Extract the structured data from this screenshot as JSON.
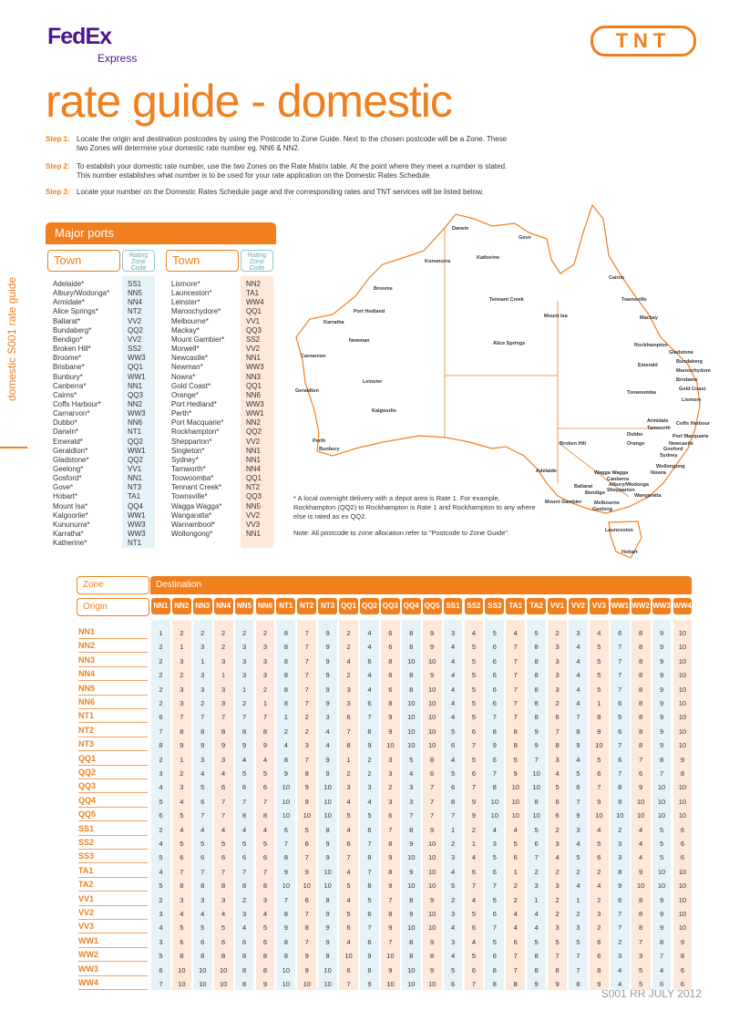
{
  "header": {
    "brand": "FedEx",
    "brand_sub": "Express",
    "right_logo": "TNT",
    "title": "rate guide - domestic",
    "side_label": "domestic S001 rate guide"
  },
  "steps": [
    {
      "label": "Step 1:",
      "text": "Locate the origin and destination postcodes by using the Postcode to Zone Guide. Next to the chosen postcode will be a Zone. These two Zones will determine your domestic rate number eg. NN6 & NN2."
    },
    {
      "label": "Step 2:",
      "text": "To establish your domestic rate number, use the two Zones on the Rate Matrix table. At the point where they meet a number is stated. This number establishes what number is to be used for your rate application on the Domestic Rates Schedule"
    },
    {
      "label": "Step 3:",
      "text": "Locate your number on the Domestic Rates Schedule page and the corresponding rates and TNT services will be listed below."
    }
  ],
  "ports": {
    "title": "Major ports",
    "col_town": "Town",
    "col_zone": "Rating Zone Code",
    "left": [
      [
        "Adelaide*",
        "SS1"
      ],
      [
        "Albury/Wodonga*",
        "NN5"
      ],
      [
        "Armidale*",
        "NN4"
      ],
      [
        "Alice Springs*",
        "NT2"
      ],
      [
        "Ballarat*",
        "VV2"
      ],
      [
        "Bundaberg*",
        "QQ2"
      ],
      [
        "Bendigo*",
        "VV2"
      ],
      [
        "Broken Hill*",
        "SS2"
      ],
      [
        "Broome*",
        "WW3"
      ],
      [
        "Brisbane*",
        "QQ1"
      ],
      [
        "Bunbury*",
        "WW1"
      ],
      [
        "Canberra*",
        "NN1"
      ],
      [
        "Cairns*",
        "QQ3"
      ],
      [
        "Coffs Harbour*",
        "NN2"
      ],
      [
        "Carnarvon*",
        "WW3"
      ],
      [
        "Dubbo*",
        "NN6"
      ],
      [
        "Darwin*",
        "NT1"
      ],
      [
        "Emerald*",
        "QQ2"
      ],
      [
        "Geraldton*",
        "WW1"
      ],
      [
        "Gladstone*",
        "QQ2"
      ],
      [
        "Geelong*",
        "VV1"
      ],
      [
        "Gosford*",
        "NN1"
      ],
      [
        "Gove*",
        "NT3"
      ],
      [
        "Hobart*",
        "TA1"
      ],
      [
        "Mount Isa*",
        "QQ4"
      ],
      [
        "Kalgoorlie*",
        "WW1"
      ],
      [
        "Kununurra*",
        "WW3"
      ],
      [
        "Karratha*",
        "WW3"
      ],
      [
        "Katherine*",
        "NT1"
      ]
    ],
    "right": [
      [
        "Lismore*",
        "NN2"
      ],
      [
        "Launceston*",
        "TA1"
      ],
      [
        "Leinster*",
        "WW4"
      ],
      [
        "Maroochydore*",
        "QQ1"
      ],
      [
        "Melbourne*",
        "VV1"
      ],
      [
        "Mackay*",
        "QQ3"
      ],
      [
        "Mount Gambier*",
        "SS2"
      ],
      [
        "Morwell*",
        "VV2"
      ],
      [
        "Newcastle*",
        "NN1"
      ],
      [
        "Newman*",
        "WW3"
      ],
      [
        "Nowra*",
        "NN3"
      ],
      [
        "Gold Coast*",
        "QQ1"
      ],
      [
        "Orange*",
        "NN6"
      ],
      [
        "Port Hedland*",
        "WW3"
      ],
      [
        "Perth*",
        "WW1"
      ],
      [
        "Port Macquarie*",
        "NN2"
      ],
      [
        "Rockhampton*",
        "QQ2"
      ],
      [
        "Shepparton*",
        "VV2"
      ],
      [
        "Singleton*",
        "NN1"
      ],
      [
        "Sydney*",
        "NN1"
      ],
      [
        "Tamworth*",
        "NN4"
      ],
      [
        "Toowoomba*",
        "QQ1"
      ],
      [
        "Tennant Creek*",
        "NT2"
      ],
      [
        "Townsville*",
        "QQ3"
      ],
      [
        "Wagga Wagga*",
        "NN5"
      ],
      [
        "Wangaratta*",
        "VV2"
      ],
      [
        "Warnambool*",
        "VV3"
      ],
      [
        "Wollongong*",
        "NN1"
      ]
    ]
  },
  "map": {
    "labels": [
      "Darwin",
      "Gove",
      "Katherine",
      "Kununurra",
      "Broome",
      "Port Hedland",
      "Karratha",
      "Newman",
      "Carnarvon",
      "Tennant Creek",
      "Mount Isa",
      "Alice Springs",
      "Cairns",
      "Townsville",
      "Mackay",
      "Rockhampton",
      "Emerald",
      "Gladstone",
      "Bundaberg",
      "Maroochydore",
      "Brisbane",
      "Gold Coast",
      "Toowoomba",
      "Lismore",
      "Geraldton",
      "Leinster",
      "Kalgoorlie",
      "Perth",
      "Bunbury",
      "Broken Hill",
      "Armidale",
      "Tamworth",
      "Coffs Harbour",
      "Dubbo",
      "Port Macquarie",
      "Orange",
      "Newcastle",
      "Gosford",
      "Sydney",
      "Wollongong",
      "Nowra",
      "Adelaide",
      "Wagga Wagga",
      "Canberra",
      "Albury/Wodonga",
      "Shepparton",
      "Wangaratta",
      "Ballarat",
      "Bendigo",
      "Mount Gambier",
      "Melbourne",
      "Geelong",
      "Launceston",
      "Hobart"
    ]
  },
  "notes": [
    "* A local overnight delivery with a depot area is Rate 1. For example, Rockhampton (QQ2) to Rockhampton is Rate 1 and Rockhampton to any where else is rated as ex QQ2.",
    "Note: All postcode to zone allocation refer to \"Postcode to Zone Guide\"."
  ],
  "matrix": {
    "zone_label": "Zone",
    "destination_label": "Destination",
    "origin_label": "Origin",
    "columns": [
      "NN1",
      "NN2",
      "NN3",
      "NN4",
      "NN5",
      "NN6",
      "NT1",
      "NT2",
      "NT3",
      "QQ1",
      "QQ2",
      "QQ3",
      "QQ4",
      "QQ5",
      "SS1",
      "SS2",
      "SS3",
      "TA1",
      "TA2",
      "VV1",
      "VV2",
      "VV3",
      "WW1",
      "WW2",
      "WW3",
      "WW4"
    ],
    "rows": [
      {
        "zone": "NN1",
        "values": [
          1,
          2,
          2,
          2,
          2,
          2,
          8,
          7,
          9,
          2,
          4,
          6,
          8,
          9,
          3,
          4,
          5,
          4,
          5,
          2,
          3,
          4,
          6,
          8,
          9,
          10
        ]
      },
      {
        "zone": "NN2",
        "values": [
          2,
          1,
          3,
          2,
          3,
          3,
          8,
          7,
          9,
          2,
          4,
          6,
          8,
          9,
          4,
          5,
          6,
          7,
          8,
          3,
          4,
          5,
          7,
          8,
          9,
          10
        ]
      },
      {
        "zone": "NN3",
        "values": [
          2,
          3,
          1,
          3,
          3,
          3,
          8,
          7,
          9,
          4,
          6,
          8,
          10,
          10,
          4,
          5,
          6,
          7,
          8,
          3,
          4,
          5,
          7,
          8,
          9,
          10
        ]
      },
      {
        "zone": "NN4",
        "values": [
          2,
          2,
          3,
          1,
          3,
          3,
          8,
          7,
          9,
          2,
          4,
          6,
          8,
          9,
          4,
          5,
          6,
          7,
          8,
          3,
          4,
          5,
          7,
          8,
          9,
          10
        ]
      },
      {
        "zone": "NN5",
        "values": [
          2,
          3,
          3,
          3,
          1,
          2,
          8,
          7,
          9,
          3,
          4,
          6,
          8,
          10,
          4,
          5,
          6,
          7,
          8,
          3,
          4,
          5,
          7,
          8,
          9,
          10
        ]
      },
      {
        "zone": "NN6",
        "values": [
          2,
          3,
          2,
          3,
          2,
          1,
          8,
          7,
          9,
          3,
          6,
          8,
          10,
          10,
          4,
          5,
          6,
          7,
          8,
          2,
          4,
          1,
          6,
          8,
          9,
          10
        ]
      },
      {
        "zone": "NT1",
        "values": [
          6,
          7,
          7,
          7,
          7,
          7,
          1,
          2,
          3,
          6,
          7,
          9,
          10,
          10,
          4,
          5,
          7,
          7,
          8,
          6,
          7,
          8,
          5,
          8,
          9,
          10
        ]
      },
      {
        "zone": "NT2",
        "values": [
          7,
          8,
          8,
          8,
          8,
          8,
          2,
          2,
          4,
          7,
          8,
          9,
          10,
          10,
          5,
          6,
          8,
          8,
          9,
          7,
          8,
          9,
          6,
          8,
          9,
          10
        ]
      },
      {
        "zone": "NT3",
        "values": [
          8,
          9,
          9,
          9,
          9,
          9,
          4,
          3,
          4,
          8,
          9,
          10,
          10,
          10,
          6,
          7,
          9,
          8,
          9,
          8,
          9,
          10,
          7,
          8,
          9,
          10
        ]
      },
      {
        "zone": "QQ1",
        "values": [
          2,
          1,
          3,
          3,
          4,
          4,
          8,
          7,
          9,
          1,
          2,
          3,
          5,
          8,
          4,
          5,
          6,
          5,
          7,
          3,
          4,
          5,
          6,
          7,
          8,
          9
        ]
      },
      {
        "zone": "QQ2",
        "values": [
          3,
          2,
          4,
          4,
          5,
          5,
          9,
          8,
          9,
          2,
          2,
          3,
          4,
          6,
          5,
          6,
          7,
          9,
          10,
          4,
          5,
          6,
          7,
          6,
          7,
          8
        ]
      },
      {
        "zone": "QQ3",
        "values": [
          4,
          3,
          5,
          6,
          6,
          6,
          10,
          9,
          10,
          3,
          3,
          2,
          3,
          7,
          6,
          7,
          8,
          10,
          10,
          5,
          6,
          7,
          8,
          9,
          10,
          10
        ]
      },
      {
        "zone": "QQ4",
        "values": [
          5,
          4,
          6,
          7,
          7,
          7,
          10,
          9,
          10,
          4,
          4,
          3,
          3,
          7,
          8,
          9,
          10,
          10,
          8,
          6,
          7,
          9,
          9,
          10,
          10,
          10
        ]
      },
      {
        "zone": "QQ5",
        "values": [
          6,
          5,
          7,
          7,
          8,
          8,
          10,
          10,
          10,
          5,
          5,
          6,
          7,
          7,
          7,
          9,
          10,
          10,
          10,
          6,
          9,
          10,
          10,
          10,
          10,
          10
        ]
      },
      {
        "zone": "SS1",
        "values": [
          2,
          4,
          4,
          4,
          4,
          4,
          6,
          5,
          8,
          4,
          6,
          7,
          8,
          9,
          1,
          2,
          4,
          4,
          5,
          2,
          3,
          4,
          2,
          4,
          5,
          6
        ]
      },
      {
        "zone": "SS2",
        "values": [
          4,
          5,
          5,
          5,
          5,
          5,
          7,
          6,
          9,
          6,
          7,
          8,
          9,
          10,
          2,
          1,
          3,
          5,
          6,
          3,
          4,
          5,
          3,
          4,
          5,
          6
        ]
      },
      {
        "zone": "SS3",
        "values": [
          5,
          6,
          6,
          6,
          6,
          6,
          8,
          7,
          9,
          7,
          8,
          9,
          10,
          10,
          3,
          4,
          5,
          6,
          7,
          4,
          5,
          6,
          3,
          4,
          5,
          6
        ]
      },
      {
        "zone": "TA1",
        "values": [
          4,
          7,
          7,
          7,
          7,
          7,
          9,
          9,
          10,
          4,
          7,
          8,
          9,
          10,
          4,
          6,
          6,
          1,
          2,
          2,
          2,
          2,
          8,
          9,
          10,
          10
        ]
      },
      {
        "zone": "TA2",
        "values": [
          5,
          8,
          8,
          8,
          8,
          8,
          10,
          10,
          10,
          5,
          8,
          9,
          10,
          10,
          5,
          7,
          7,
          2,
          3,
          3,
          4,
          4,
          9,
          10,
          10,
          10
        ]
      },
      {
        "zone": "VV1",
        "values": [
          2,
          3,
          3,
          3,
          2,
          3,
          7,
          6,
          8,
          4,
          5,
          7,
          8,
          9,
          2,
          4,
          5,
          2,
          1,
          2,
          1,
          2,
          6,
          8,
          9,
          10
        ]
      },
      {
        "zone": "VV2",
        "values": [
          3,
          4,
          4,
          4,
          3,
          4,
          8,
          7,
          9,
          5,
          6,
          8,
          9,
          10,
          3,
          5,
          6,
          4,
          4,
          2,
          2,
          3,
          7,
          8,
          9,
          10
        ]
      },
      {
        "zone": "VV3",
        "values": [
          4,
          5,
          5,
          5,
          4,
          5,
          9,
          8,
          9,
          6,
          7,
          9,
          10,
          10,
          4,
          6,
          7,
          4,
          4,
          3,
          3,
          2,
          7,
          8,
          9,
          10
        ]
      },
      {
        "zone": "WW1",
        "values": [
          3,
          6,
          6,
          6,
          6,
          6,
          8,
          7,
          9,
          4,
          6,
          7,
          8,
          9,
          3,
          4,
          5,
          6,
          5,
          5,
          5,
          6,
          2,
          7,
          8,
          9
        ]
      },
      {
        "zone": "WW2",
        "values": [
          5,
          8,
          8,
          8,
          8,
          8,
          8,
          9,
          8,
          10,
          9,
          10,
          8,
          8,
          4,
          5,
          6,
          7,
          8,
          7,
          7,
          6,
          3,
          3,
          7,
          8
        ]
      },
      {
        "zone": "WW3",
        "values": [
          6,
          10,
          10,
          10,
          8,
          8,
          10,
          9,
          10,
          6,
          8,
          9,
          10,
          9,
          5,
          6,
          8,
          7,
          8,
          8,
          7,
          8,
          4,
          5,
          4,
          6
        ]
      },
      {
        "zone": "WW4",
        "values": [
          7,
          10,
          10,
          10,
          8,
          9,
          10,
          10,
          10,
          7,
          9,
          10,
          10,
          10,
          6,
          7,
          8,
          8,
          9,
          9,
          8,
          9,
          4,
          5,
          6,
          6
        ]
      }
    ]
  },
  "footer": "S001 RR JULY 2012"
}
